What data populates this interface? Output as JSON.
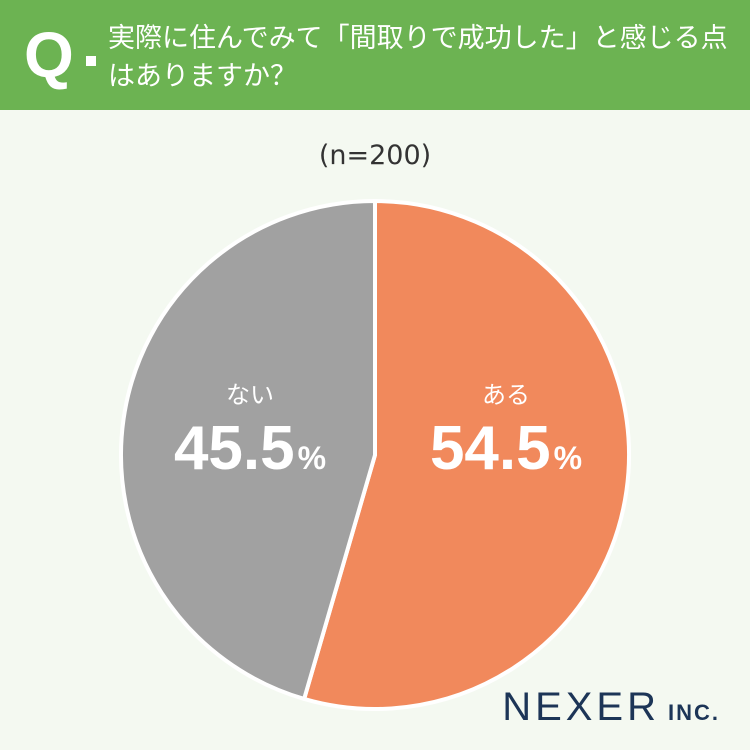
{
  "header": {
    "q_mark": "Q",
    "question": "実際に住んでみて「間取りで成功した」と感じる点はありますか？",
    "background_color": "#6cb352"
  },
  "sample_size": "(n=200)",
  "chart_data": {
    "type": "pie",
    "categories": [
      "ある",
      "ない"
    ],
    "values": [
      54.5,
      45.5
    ],
    "value_suffix": "%",
    "colors": [
      "#f1895c",
      "#a1a1a1"
    ],
    "start_angle_deg": 0,
    "direction": "clockwise"
  },
  "labels": {
    "aru": {
      "category": "ある",
      "value": "54.5",
      "unit": "%"
    },
    "nai": {
      "category": "ない",
      "value": "45.5",
      "unit": "%"
    }
  },
  "logo": {
    "main": "NEXER",
    "sub": "INC."
  }
}
